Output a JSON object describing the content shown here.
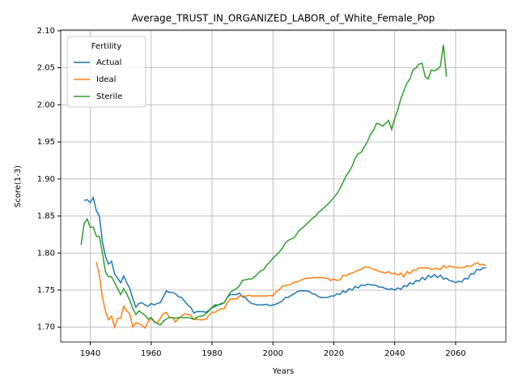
{
  "chart_data": {
    "type": "line",
    "title": "Average_TRUST_IN_ORGANIZED_LABOR_of_White_Female_Pop",
    "x_label": "Years",
    "y_label": "Score(1-3)",
    "legend_title": "Fertility",
    "legend": "upper left",
    "grid": true,
    "xlim": [
      1930.3,
      2076.5
    ],
    "ylim": [
      1.68,
      2.101
    ],
    "xticks": [
      1940,
      1960,
      1980,
      2000,
      2020,
      2040,
      2060
    ],
    "yticks": [
      {
        "value": 1.7,
        "label": "1.70"
      },
      1.75,
      {
        "value": 1.8,
        "label": "1.80"
      },
      1.85,
      {
        "value": 1.9,
        "label": "1.90"
      },
      1.95,
      {
        "value": 2.0,
        "label": "2.00"
      },
      2.05,
      {
        "value": 2.1,
        "label": "2.10"
      }
    ],
    "x": [
      1937,
      1938,
      1939,
      1940,
      1941,
      1942,
      1943,
      1944,
      1945,
      1946,
      1947,
      1948,
      1949,
      1950,
      1951,
      1952,
      1953,
      1954,
      1955,
      1956,
      1957,
      1958,
      1959,
      1960,
      1961,
      1962,
      1963,
      1964,
      1965,
      1966,
      1967,
      1968,
      1969,
      1970,
      1971,
      1972,
      1973,
      1974,
      1975,
      1976,
      1977,
      1978,
      1979,
      1980,
      1981,
      1982,
      1983,
      1984,
      1985,
      1986,
      1987,
      1988,
      1989,
      1990,
      1991,
      1992,
      1993,
      1994,
      1995,
      1996,
      1997,
      1998,
      1999,
      2000,
      2001,
      2002,
      2003,
      2004,
      2005,
      2006,
      2007,
      2008,
      2009,
      2010,
      2011,
      2012,
      2013,
      2014,
      2015,
      2016,
      2017,
      2018,
      2019,
      2020,
      2021,
      2022,
      2023,
      2024,
      2025,
      2026,
      2027,
      2028,
      2029,
      2030,
      2031,
      2032,
      2033,
      2034,
      2035,
      2036,
      2037,
      2038,
      2039,
      2040,
      2041,
      2042,
      2043,
      2044,
      2045,
      2046,
      2047,
      2048,
      2049,
      2050,
      2051,
      2052,
      2053,
      2054,
      2055,
      2056,
      2057,
      2058,
      2059,
      2060,
      2061,
      2062,
      2063,
      2064,
      2065,
      2066,
      2067,
      2068,
      2069,
      2070
    ],
    "series": [
      {
        "name": "Actual",
        "color": "#1f77b4",
        "values": [
          null,
          1.871,
          1.872,
          1.868,
          1.875,
          1.857,
          1.85,
          1.815,
          1.795,
          1.785,
          1.789,
          1.772,
          1.766,
          1.76,
          1.769,
          1.76,
          1.752,
          1.738,
          1.727,
          1.732,
          1.733,
          1.73,
          1.728,
          1.732,
          1.73,
          1.732,
          1.733,
          1.741,
          1.749,
          1.747,
          1.747,
          1.745,
          1.741,
          1.74,
          1.735,
          1.73,
          1.727,
          1.719,
          1.721,
          1.721,
          1.721,
          1.72,
          1.723,
          1.726,
          1.728,
          1.73,
          1.731,
          1.733,
          1.74,
          1.744,
          1.744,
          1.744,
          1.746,
          1.741,
          1.74,
          1.735,
          1.732,
          1.731,
          1.73,
          1.73,
          1.73,
          1.731,
          1.729,
          1.73,
          1.731,
          1.733,
          1.735,
          1.74,
          1.74,
          1.743,
          1.745,
          1.748,
          1.749,
          1.749,
          1.749,
          1.748,
          1.745,
          1.744,
          1.741,
          1.74,
          1.74,
          1.74,
          1.742,
          1.742,
          1.745,
          1.744,
          1.749,
          1.747,
          1.752,
          1.75,
          1.755,
          1.753,
          1.757,
          1.756,
          1.758,
          1.757,
          1.757,
          1.756,
          1.754,
          1.754,
          1.752,
          1.751,
          1.752,
          1.75,
          1.753,
          1.751,
          1.756,
          1.755,
          1.76,
          1.758,
          1.763,
          1.762,
          1.767,
          1.764,
          1.77,
          1.767,
          1.771,
          1.767,
          1.77,
          1.765,
          1.766,
          1.763,
          1.762,
          1.76,
          1.762,
          1.761,
          1.766,
          1.765,
          1.772,
          1.772,
          1.778,
          1.777,
          1.78,
          1.78
        ]
      },
      {
        "name": "Ideal",
        "color": "#ff7f0e",
        "values": [
          null,
          null,
          null,
          null,
          null,
          1.788,
          1.77,
          1.74,
          1.722,
          1.71,
          1.715,
          1.7,
          1.712,
          1.712,
          1.728,
          1.722,
          1.718,
          1.7,
          1.706,
          1.705,
          1.702,
          1.699,
          1.708,
          1.712,
          1.707,
          1.705,
          1.712,
          1.718,
          1.72,
          1.713,
          1.713,
          1.707,
          1.712,
          1.715,
          1.718,
          1.717,
          1.716,
          1.71,
          1.711,
          1.71,
          1.71,
          1.711,
          1.716,
          1.72,
          1.72,
          1.723,
          1.725,
          1.725,
          1.733,
          1.738,
          1.738,
          1.738,
          1.742,
          1.742,
          1.742,
          1.743,
          1.742,
          1.742,
          1.742,
          1.742,
          1.742,
          1.742,
          1.743,
          1.742,
          1.748,
          1.75,
          1.755,
          1.756,
          1.757,
          1.758,
          1.761,
          1.761,
          1.763,
          1.765,
          1.766,
          1.766,
          1.767,
          1.767,
          1.767,
          1.767,
          1.766,
          1.766,
          1.763,
          1.765,
          1.763,
          1.764,
          1.77,
          1.769,
          1.772,
          1.773,
          1.775,
          1.777,
          1.778,
          1.781,
          1.781,
          1.78,
          1.778,
          1.777,
          1.775,
          1.774,
          1.773,
          1.775,
          1.772,
          1.773,
          1.77,
          1.773,
          1.768,
          1.775,
          1.772,
          1.777,
          1.777,
          1.78,
          1.78,
          1.78,
          1.78,
          1.778,
          1.779,
          1.779,
          1.778,
          1.783,
          1.78,
          1.783,
          1.781,
          1.781,
          1.78,
          1.78,
          1.781,
          1.783,
          1.782,
          1.785,
          1.787,
          1.784,
          1.785,
          1.783
        ]
      },
      {
        "name": "Sterile",
        "color": "#2ca02c",
        "values": [
          1.811,
          1.84,
          1.846,
          1.835,
          1.835,
          1.823,
          1.822,
          1.8,
          1.775,
          1.768,
          1.768,
          1.76,
          1.752,
          1.744,
          1.752,
          1.745,
          1.736,
          1.725,
          1.717,
          1.722,
          1.719,
          1.716,
          1.711,
          1.713,
          1.708,
          1.705,
          1.703,
          1.708,
          1.711,
          1.713,
          1.713,
          1.712,
          1.713,
          1.713,
          1.713,
          1.713,
          1.712,
          1.711,
          1.713,
          1.715,
          1.715,
          1.718,
          1.722,
          1.727,
          1.73,
          1.73,
          1.732,
          1.733,
          1.74,
          1.747,
          1.75,
          1.752,
          1.756,
          1.763,
          1.764,
          1.765,
          1.765,
          1.768,
          1.772,
          1.776,
          1.778,
          1.784,
          1.788,
          1.793,
          1.797,
          1.801,
          1.806,
          1.813,
          1.817,
          1.819,
          1.821,
          1.827,
          1.832,
          1.835,
          1.839,
          1.843,
          1.847,
          1.85,
          1.855,
          1.858,
          1.862,
          1.866,
          1.87,
          1.875,
          1.88,
          1.887,
          1.895,
          1.904,
          1.91,
          1.917,
          1.928,
          1.934,
          1.936,
          1.943,
          1.95,
          1.96,
          1.965,
          1.975,
          1.974,
          1.971,
          1.975,
          1.979,
          1.967,
          1.982,
          1.993,
          2.008,
          2.019,
          2.029,
          2.035,
          2.047,
          2.05,
          2.055,
          2.056,
          2.038,
          2.035,
          2.047,
          2.046,
          2.048,
          2.052,
          2.081,
          2.038,
          null,
          null,
          null,
          null,
          null,
          null,
          null,
          null,
          null,
          null,
          null,
          null,
          null
        ]
      }
    ]
  }
}
